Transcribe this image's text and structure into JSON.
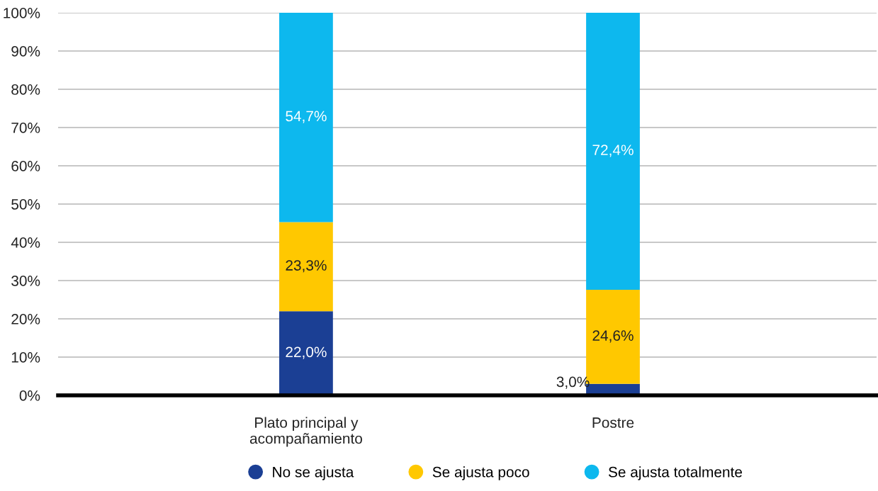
{
  "chart_data": {
    "type": "bar",
    "stacked": true,
    "categories": [
      "Plato principal y\nacompañamiento",
      "Postre"
    ],
    "series": [
      {
        "name": "No se ajusta",
        "color": "#1b3f94",
        "values": [
          22.0,
          3.0
        ],
        "value_labels": [
          "22,0%",
          "3,0%"
        ]
      },
      {
        "name": "Se ajusta poco",
        "color": "#ffc800",
        "values": [
          23.3,
          24.6
        ],
        "value_labels": [
          "23,3%",
          "24,6%"
        ]
      },
      {
        "name": "Se ajusta totalmente",
        "color": "#0db8ee",
        "values": [
          54.7,
          72.4
        ],
        "value_labels": [
          "54,7%",
          "72,4%"
        ]
      }
    ],
    "ylim": [
      0,
      100
    ],
    "yticks": [
      {
        "value": 0,
        "label": "0%"
      },
      {
        "value": 10,
        "label": "10%"
      },
      {
        "value": 20,
        "label": "20%"
      },
      {
        "value": 30,
        "label": "30%"
      },
      {
        "value": 40,
        "label": "40%"
      },
      {
        "value": 50,
        "label": "50%"
      },
      {
        "value": 60,
        "label": "60%"
      },
      {
        "value": 70,
        "label": "70%"
      },
      {
        "value": 80,
        "label": "80%"
      },
      {
        "value": 90,
        "label": "90%"
      },
      {
        "value": 100,
        "label": "100%"
      }
    ],
    "grid": "y",
    "legend": "bottom"
  }
}
